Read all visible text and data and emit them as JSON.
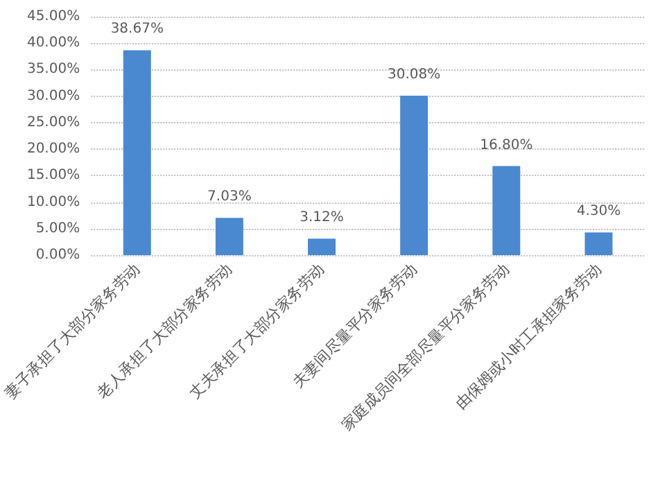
{
  "chart_data": {
    "type": "bar",
    "categories": [
      "妻子承担了大部分家务劳动",
      "老人承担了大部分家务劳动",
      "丈夫承担了大部分家务劳动",
      "夫妻间尽量平分家务劳动",
      "家庭成员间全部尽量平分家务劳动",
      "由保姆或小时工承担家务劳动"
    ],
    "values": [
      38.67,
      7.03,
      3.12,
      30.08,
      16.8,
      4.3
    ],
    "value_labels": [
      "38.67%",
      "7.03%",
      "3.12%",
      "30.08%",
      "16.80%",
      "4.30%"
    ],
    "color": "#4a89d0",
    "ylim": [
      0,
      45
    ],
    "yticks": [
      {
        "value": 0,
        "label": "0.00%"
      },
      {
        "value": 5,
        "label": "5.00%"
      },
      {
        "value": 10,
        "label": "10.00%"
      },
      {
        "value": 15,
        "label": "15.00%"
      },
      {
        "value": 20,
        "label": "20.00%"
      },
      {
        "value": 25,
        "label": "25.00%"
      },
      {
        "value": 30,
        "label": "30.00%"
      },
      {
        "value": 35,
        "label": "35.00%"
      },
      {
        "value": 40,
        "label": "40.00%"
      },
      {
        "value": 45,
        "label": "45.00%"
      }
    ],
    "grid": "y"
  }
}
